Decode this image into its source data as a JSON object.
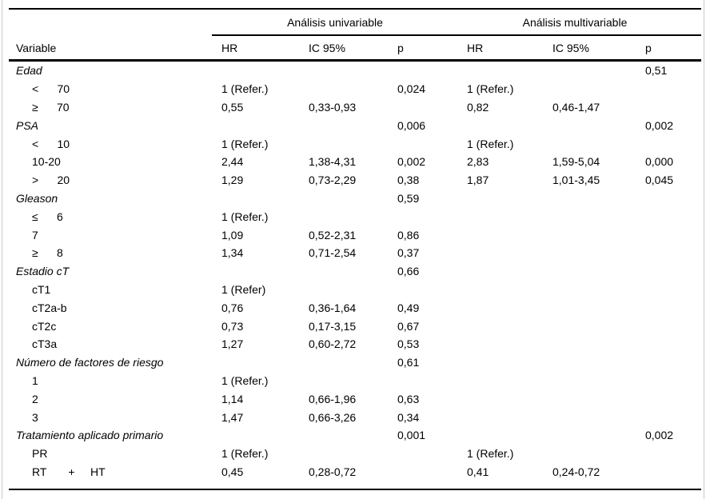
{
  "table": {
    "spanners": {
      "univariable": "Análisis univariable",
      "multivariable": "Análisis multivariable"
    },
    "columns": [
      "Variable",
      "HR",
      "IC 95%",
      "p",
      "HR",
      "IC 95%",
      "p"
    ],
    "rows": [
      {
        "label": "Edad",
        "group": true,
        "cells": [
          "",
          "",
          "",
          "",
          "",
          "0,51"
        ]
      },
      {
        "label": "<      70",
        "group": false,
        "cells": [
          "1 (Refer.)",
          "",
          "0,024",
          "1 (Refer.)",
          "",
          ""
        ]
      },
      {
        "label": "≥      70",
        "group": false,
        "cells": [
          "0,55",
          "0,33-0,93",
          "",
          "0,82",
          "0,46-1,47",
          ""
        ]
      },
      {
        "label": "PSA",
        "group": true,
        "cells": [
          "",
          "",
          "0,006",
          "",
          "",
          "0,002"
        ]
      },
      {
        "label": "<      10",
        "group": false,
        "cells": [
          "1 (Refer.)",
          "",
          "",
          "1 (Refer.)",
          "",
          ""
        ]
      },
      {
        "label": "10-20",
        "group": false,
        "cells": [
          "2,44",
          "1,38-4,31",
          "0,002",
          "2,83",
          "1,59-5,04",
          "0,000"
        ]
      },
      {
        "label": ">      20",
        "group": false,
        "cells": [
          "1,29",
          "0,73-2,29",
          "0,38",
          "1,87",
          "1,01-3,45",
          "0,045"
        ]
      },
      {
        "label": "Gleason",
        "group": true,
        "cells": [
          "",
          "",
          "0,59",
          "",
          "",
          ""
        ]
      },
      {
        "label": "≤      6",
        "group": false,
        "cells": [
          "1 (Refer.)",
          "",
          "",
          "",
          "",
          ""
        ]
      },
      {
        "label": "7",
        "group": false,
        "cells": [
          "1,09",
          "0,52-2,31",
          "0,86",
          "",
          "",
          ""
        ]
      },
      {
        "label": "≥      8",
        "group": false,
        "cells": [
          "1,34",
          "0,71-2,54",
          "0,37",
          "",
          "",
          ""
        ]
      },
      {
        "label": "Estadio cT",
        "group": true,
        "cells": [
          "",
          "",
          "0,66",
          "",
          "",
          ""
        ]
      },
      {
        "label": "cT1",
        "group": false,
        "cells": [
          "1 (Refer)",
          "",
          "",
          "",
          "",
          ""
        ]
      },
      {
        "label": "cT2a-b",
        "group": false,
        "cells": [
          "0,76",
          "0,36-1,64",
          "0,49",
          "",
          "",
          ""
        ]
      },
      {
        "label": "cT2c",
        "group": false,
        "cells": [
          "0,73",
          "0,17-3,15",
          "0,67",
          "",
          "",
          ""
        ]
      },
      {
        "label": "cT3a",
        "group": false,
        "cells": [
          "1,27",
          "0,60-2,72",
          "0,53",
          "",
          "",
          ""
        ]
      },
      {
        "label": "Número de factores de riesgo",
        "group": true,
        "cells": [
          "",
          "",
          "0,61",
          "",
          "",
          ""
        ]
      },
      {
        "label": "1",
        "group": false,
        "cells": [
          "1 (Refer.)",
          "",
          "",
          "",
          "",
          ""
        ]
      },
      {
        "label": "2",
        "group": false,
        "cells": [
          "1,14",
          "0,66-1,96",
          "0,63",
          "",
          "",
          ""
        ]
      },
      {
        "label": "3",
        "group": false,
        "cells": [
          "1,47",
          "0,66-3,26",
          "0,34",
          "",
          "",
          ""
        ]
      },
      {
        "label": "Tratamiento aplicado primario",
        "group": true,
        "cells": [
          "",
          "",
          "0,001",
          "",
          "",
          "0,002"
        ]
      },
      {
        "label": "PR",
        "group": false,
        "cells": [
          "1 (Refer.)",
          "",
          "",
          "1 (Refer.)",
          "",
          ""
        ]
      },
      {
        "label": "RT       +     HT",
        "group": false,
        "cells": [
          "0,45",
          "0,28-0,72",
          "",
          "0,41",
          "0,24-0,72",
          ""
        ]
      }
    ]
  }
}
